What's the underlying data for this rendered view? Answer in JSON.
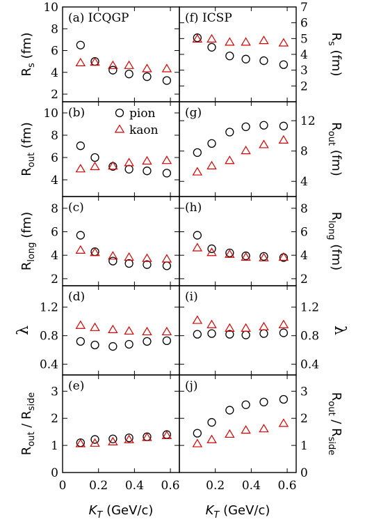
{
  "chart_data": {
    "type": "scatter",
    "x_label": {
      "main": "K",
      "sub": "T",
      "unit": " (GeV/c)"
    },
    "xlim": [
      0,
      0.65
    ],
    "x_ticks": [
      "0",
      "0.2",
      "0.4",
      "0.6"
    ],
    "x_ticks_right": [
      "0",
      "0.2",
      "0.4",
      "0.6"
    ],
    "x": [
      0.1,
      0.18,
      0.28,
      0.37,
      0.47,
      0.58
    ],
    "legend": {
      "pion": "pion",
      "kaon": "kaon",
      "placement": "upper-right of panel (b)"
    },
    "columns": [
      {
        "tag": "ICQGP",
        "label_side": "left"
      },
      {
        "tag": "ICSP",
        "label_side": "right"
      }
    ],
    "rows": [
      {
        "ylabel": {
          "main": "R",
          "sub": "s",
          "unit": " (fm)"
        },
        "left": {
          "ylim": [
            1.3,
            10
          ],
          "ticks": [
            2,
            4,
            6,
            8,
            10
          ],
          "tag": "(a) ICQGP",
          "pion": [
            6.5,
            5.0,
            4.2,
            3.85,
            3.6,
            3.25
          ],
          "kaon": [
            4.85,
            4.9,
            4.6,
            4.6,
            4.3,
            4.3
          ]
        },
        "right": {
          "ylim": [
            1.0,
            7
          ],
          "ticks": [
            2,
            3,
            4,
            5,
            6,
            7
          ],
          "tag": "(f) ICSP",
          "pion": [
            5.05,
            4.45,
            3.9,
            3.7,
            3.6,
            3.35
          ],
          "kaon": [
            4.95,
            4.95,
            4.75,
            4.75,
            4.85,
            4.7
          ]
        }
      },
      {
        "ylabel": {
          "main": "R",
          "sub": "out",
          "unit": " (fm)"
        },
        "left": {
          "ylim": [
            2.5,
            11
          ],
          "ticks": [
            4,
            6,
            8,
            10
          ],
          "tag": "(b)",
          "pion": [
            7.05,
            6.0,
            5.2,
            4.95,
            4.8,
            4.6
          ],
          "kaon": [
            4.95,
            5.15,
            5.2,
            5.5,
            5.65,
            5.7
          ]
        },
        "right": {
          "ylim": [
            2.0,
            14.5
          ],
          "ticks": [
            4,
            8,
            12
          ],
          "tag": "(g)",
          "pion": [
            7.8,
            9.0,
            10.5,
            11.2,
            11.4,
            11.3
          ],
          "kaon": [
            5.2,
            6.0,
            6.7,
            8.0,
            8.8,
            9.4
          ]
        }
      },
      {
        "ylabel": {
          "main": "R",
          "sub": "long",
          "unit": " (fm)"
        },
        "left": {
          "ylim": [
            1.4,
            9
          ],
          "ticks": [
            2,
            4,
            6,
            8
          ],
          "tag": "(c)",
          "pion": [
            5.7,
            4.3,
            3.5,
            3.3,
            3.2,
            3.1
          ],
          "kaon": [
            4.4,
            4.2,
            3.9,
            3.8,
            3.7,
            3.65
          ]
        },
        "right": {
          "ylim": [
            1.4,
            9
          ],
          "ticks": [
            2,
            4,
            6,
            8
          ],
          "tag": "(h)",
          "pion": [
            5.7,
            4.55,
            4.2,
            3.95,
            3.9,
            3.8
          ],
          "kaon": [
            4.6,
            4.2,
            4.05,
            3.8,
            3.75,
            3.8
          ]
        }
      },
      {
        "ylabel": {
          "main": "λ",
          "sub": "",
          "unit": ""
        },
        "left": {
          "ylim": [
            0.25,
            1.5
          ],
          "ticks": [
            "0.4",
            "0.8",
            "1.2"
          ],
          "tag": "(d)",
          "pion": [
            0.72,
            0.67,
            0.65,
            0.68,
            0.72,
            0.73
          ],
          "kaon": [
            0.94,
            0.91,
            0.88,
            0.86,
            0.85,
            0.85
          ]
        },
        "right": {
          "ylim": [
            0.25,
            1.5
          ],
          "ticks": [
            "0.4",
            "0.8",
            "1.2"
          ],
          "tag": "(i)",
          "pion": [
            0.82,
            0.83,
            0.82,
            0.81,
            0.83,
            0.84
          ],
          "kaon": [
            1.01,
            0.95,
            0.9,
            0.9,
            0.92,
            0.95
          ]
        }
      },
      {
        "ylabel": {
          "main": "R",
          "sub": "out",
          "unit": " / ",
          "main2": "R",
          "sub2": "side"
        },
        "left": {
          "ylim": [
            0,
            3.6
          ],
          "ticks": [
            0,
            1,
            2,
            3
          ],
          "tag": "(e)",
          "pion": [
            1.1,
            1.22,
            1.24,
            1.28,
            1.32,
            1.4
          ],
          "kaon": [
            1.05,
            1.07,
            1.12,
            1.2,
            1.28,
            1.35
          ]
        },
        "right": {
          "ylim": [
            0,
            3.6
          ],
          "ticks": [
            0,
            1,
            2,
            3
          ],
          "tag": "(j)",
          "pion": [
            1.45,
            1.85,
            2.3,
            2.5,
            2.6,
            2.7
          ],
          "kaon": [
            1.05,
            1.2,
            1.4,
            1.55,
            1.6,
            1.8
          ]
        }
      }
    ]
  }
}
